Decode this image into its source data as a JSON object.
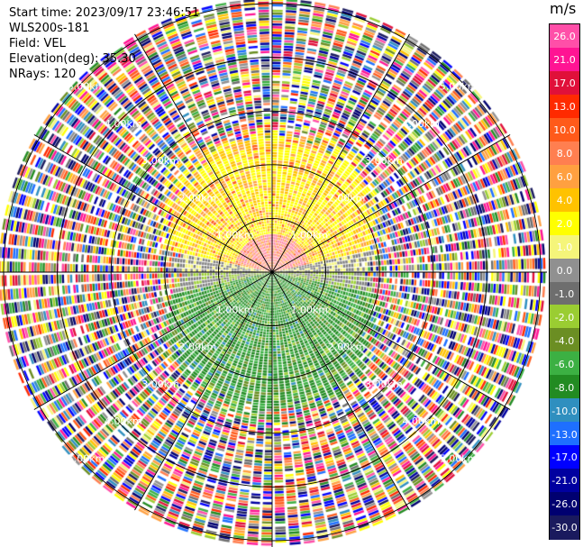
{
  "header": {
    "start_time": "Start time: 2023/09/17 23:46:51",
    "site": "WLS200s-181",
    "field": "Field: VEL",
    "elevation": "Elevation(deg): 35.30",
    "nrays": "NRays: 120"
  },
  "colorbar": {
    "unit": "m/s",
    "labels": [
      "26.0",
      "21.0",
      "17.0",
      "13.0",
      "10.0",
      "8.0",
      "6.0",
      "4.0",
      "2.0",
      "1.0",
      "0.0",
      "-1.0",
      "-2.0",
      "-4.0",
      "-6.0",
      "-8.0",
      "-10.0",
      "-13.0",
      "-17.0",
      "-21.0",
      "-26.0",
      "-30.0"
    ],
    "colors": [
      "#ff4fa8",
      "#ff1493",
      "#e0103a",
      "#ff2a00",
      "#ff5a1a",
      "#ff7f50",
      "#ffa040",
      "#ffc200",
      "#ffff00",
      "#f5f57a",
      "#909090",
      "#6e6e6e",
      "#9acd32",
      "#6b8e23",
      "#3cb043",
      "#228b22",
      "#2f8fbf",
      "#1e6fff",
      "#0000ff",
      "#0000a0",
      "#000070",
      "#1a1a5e"
    ]
  },
  "range_rings": [
    "1.00km",
    "2.00km",
    "3.00km",
    "4.00km",
    "5.00km"
  ],
  "ppi": {
    "n_rays": 120,
    "max_range_km": 5.0,
    "inner_region": "positive velocities (yellow/orange) to the north, negative velocities (green) to the south",
    "outer_region": "noise"
  }
}
